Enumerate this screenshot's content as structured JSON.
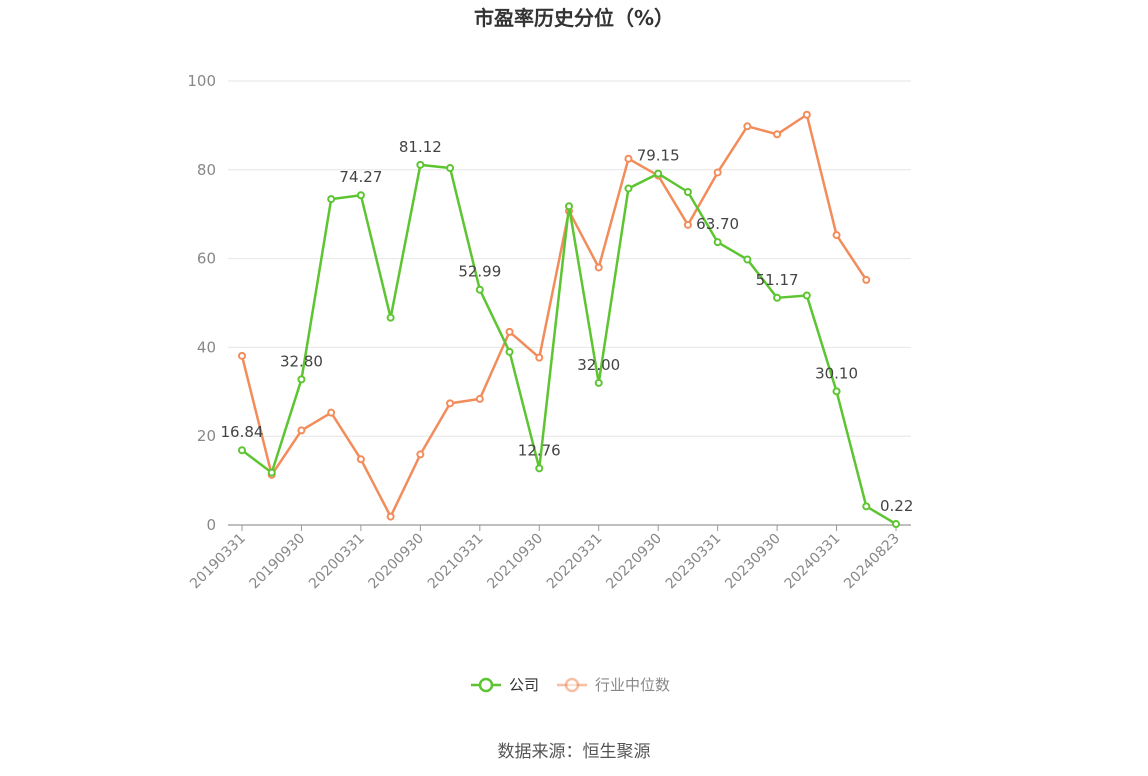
{
  "chart_data": {
    "type": "line",
    "title": "市盈率历史分位（%）",
    "xlabel": "",
    "ylabel": "",
    "ylim": [
      0,
      100
    ],
    "yticks": [
      0,
      20,
      40,
      60,
      80,
      100
    ],
    "grid": true,
    "legend_position": "bottom",
    "x": [
      "20190331",
      "20190630",
      "20190930",
      "20191231",
      "20200331",
      "20200630",
      "20200930",
      "20201231",
      "20210331",
      "20210630",
      "20210930",
      "20211231",
      "20220331",
      "20220630",
      "20220930",
      "20221231",
      "20230331",
      "20230630",
      "20230930",
      "20231231",
      "20240331",
      "20240630",
      "20240823"
    ],
    "x_tick_labels": [
      "20190331",
      "20190930",
      "20200331",
      "20200930",
      "20210331",
      "20210930",
      "20220331",
      "20220930",
      "20230331",
      "20230930",
      "20240331",
      "20240823"
    ],
    "series": [
      {
        "name": "公司",
        "color": "#5cc531",
        "values": [
          16.84,
          11.8,
          32.8,
          73.4,
          74.27,
          46.7,
          81.12,
          80.4,
          52.99,
          39.0,
          12.76,
          71.8,
          32.0,
          75.8,
          79.15,
          75.0,
          63.7,
          59.8,
          51.17,
          51.7,
          30.1,
          4.2,
          0.22
        ],
        "labels": {
          "0": "16.84",
          "2": "32.80",
          "4": "74.27",
          "6": "81.12",
          "8": "52.99",
          "10": "12.76",
          "12": "32.00",
          "14": "79.15",
          "16": "63.70",
          "18": "51.17",
          "20": "30.10",
          "22": "0.22"
        }
      },
      {
        "name": "行业中位数",
        "color": "#f28c5a",
        "values": [
          38.1,
          11.3,
          21.3,
          25.3,
          14.8,
          1.9,
          15.9,
          27.4,
          28.4,
          43.5,
          37.7,
          70.7,
          58.0,
          82.5,
          78.7,
          67.6,
          79.4,
          89.8,
          88.0,
          92.4,
          65.3,
          55.2,
          null
        ]
      }
    ]
  },
  "source_text": "数据来源：恒生聚源"
}
